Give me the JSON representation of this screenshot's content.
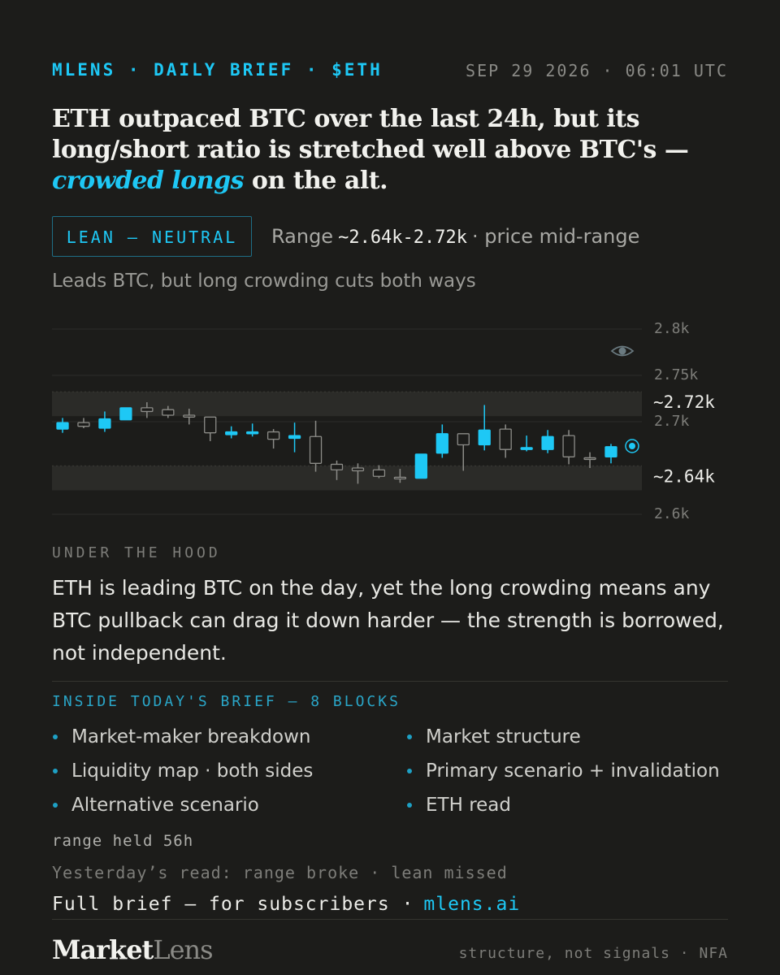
{
  "header": {
    "tag": "MLENS · DAILY BRIEF · $ETH",
    "timestamp": "SEP 29 2026 · 06:01 UTC"
  },
  "headline": {
    "before": "ETH outpaced BTC over the last 24h, but its long/short ratio is stretched well above BTC's — ",
    "emphasis": "crowded longs",
    "after": " on the alt."
  },
  "lean": {
    "badge": "LEAN — NEUTRAL",
    "range_prefix": "Range",
    "range": "~2.64k-2.72k",
    "range_suffix": "· price mid-range"
  },
  "subline": "Leads BTC, but long crowding cuts both ways",
  "chart_data": {
    "type": "candlestick",
    "colors": {
      "up": "#1ec8f5",
      "down": "#8c8c88"
    },
    "ylim": [
      2600,
      2800
    ],
    "yticks": [
      {
        "value": 2800,
        "label": "2.8k"
      },
      {
        "value": 2750,
        "label": "2.75k"
      },
      {
        "value": 2700,
        "label": "2.7k"
      },
      {
        "value": 2600,
        "label": "2.6k"
      }
    ],
    "grid": true,
    "range_levels": [
      {
        "value": 2720,
        "label": "~2.72k"
      },
      {
        "value": 2640,
        "label": "~2.64k"
      }
    ],
    "open": [
      2692,
      2699,
      2693,
      2702,
      2715,
      2713,
      2707,
      2705,
      2686,
      2687,
      2689,
      2682,
      2684,
      2654,
      2650,
      2648,
      2640,
      2639,
      2666,
      2687,
      2675,
      2692,
      2670,
      2670,
      2685,
      2661,
      2662
    ],
    "high": [
      2704,
      2704,
      2711,
      2715,
      2721,
      2717,
      2714,
      2705,
      2695,
      2698,
      2692,
      2699,
      2701,
      2658,
      2655,
      2653,
      2649,
      2665,
      2697,
      2687,
      2718,
      2697,
      2685,
      2691,
      2691,
      2667,
      2676
    ],
    "low": [
      2688,
      2693,
      2689,
      2702,
      2704,
      2704,
      2697,
      2679,
      2682,
      2684,
      2671,
      2667,
      2646,
      2637,
      2633,
      2639,
      2634,
      2639,
      2661,
      2647,
      2669,
      2661,
      2668,
      2666,
      2654,
      2650,
      2655
    ],
    "close": [
      2699,
      2695,
      2703,
      2715,
      2711,
      2707,
      2705,
      2688,
      2689,
      2689,
      2681,
      2685,
      2655,
      2648,
      2647,
      2641,
      2639,
      2665,
      2687,
      2675,
      2691,
      2670,
      2672,
      2684,
      2662,
      2660,
      2673
    ]
  },
  "hood": {
    "title": "UNDER THE HOOD",
    "body": "ETH is leading BTC on the day, yet the long crowding means any BTC pullback can drag it down harder — the strength is borrowed, not independent."
  },
  "inside": {
    "title": "INSIDE TODAY'S BRIEF — 8 BLOCKS",
    "items": [
      "Market-maker breakdown",
      "Market structure",
      "Liquidity map · both sides",
      "Primary scenario + invalidation",
      "Alternative scenario",
      "ETH read"
    ]
  },
  "range_held": "range held 56h",
  "yesterday": "Yesterday’s read: range broke · lean missed",
  "cta": {
    "text": "Full brief — for subscribers ·",
    "link": "mlens.ai"
  },
  "brand": {
    "first": "Market",
    "second": "Lens"
  },
  "disclaimer": "structure, not signals · NFA"
}
